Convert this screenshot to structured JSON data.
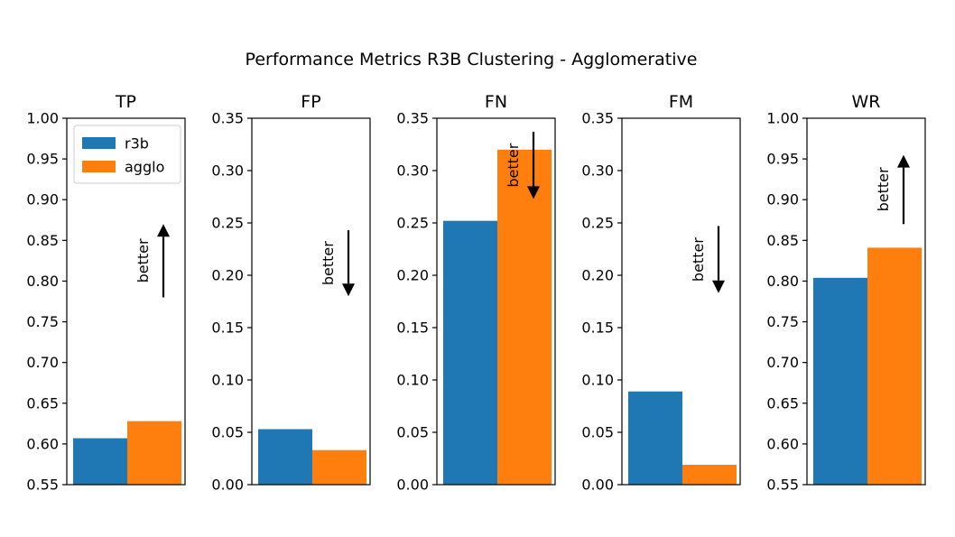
{
  "figure": {
    "title": "Performance Metrics R3B Clustering - Agglomerative"
  },
  "colors": {
    "r3b": "#1f77b4",
    "agglo": "#ff7f0e"
  },
  "legend": {
    "placement": "upper-left of first panel",
    "entries": [
      "r3b",
      "agglo"
    ]
  },
  "chart_data": [
    {
      "type": "bar",
      "title": "TP",
      "categories": [
        "r3b",
        "agglo"
      ],
      "values": [
        0.607,
        0.628
      ],
      "ylim": [
        0.55,
        1.0
      ],
      "yticks": [
        "0.55",
        "0.60",
        "0.65",
        "0.70",
        "0.75",
        "0.80",
        "0.85",
        "0.90",
        "0.95",
        "1.00"
      ],
      "annotation": {
        "text": "better",
        "direction": "up",
        "from": 0.78,
        "to": 0.87
      }
    },
    {
      "type": "bar",
      "title": "FP",
      "categories": [
        "r3b",
        "agglo"
      ],
      "values": [
        0.053,
        0.033
      ],
      "ylim": [
        0.0,
        0.35
      ],
      "yticks": [
        "0.00",
        "0.05",
        "0.10",
        "0.15",
        "0.20",
        "0.25",
        "0.30",
        "0.35"
      ],
      "annotation": {
        "text": "better",
        "direction": "down",
        "from": 0.243,
        "to": 0.18
      }
    },
    {
      "type": "bar",
      "title": "FN",
      "categories": [
        "r3b",
        "agglo"
      ],
      "values": [
        0.252,
        0.32
      ],
      "ylim": [
        0.0,
        0.35
      ],
      "yticks": [
        "0.00",
        "0.05",
        "0.10",
        "0.15",
        "0.20",
        "0.25",
        "0.30",
        "0.35"
      ],
      "annotation": {
        "text": "better",
        "direction": "down",
        "from": 0.337,
        "to": 0.273
      }
    },
    {
      "type": "bar",
      "title": "FM",
      "categories": [
        "r3b",
        "agglo"
      ],
      "values": [
        0.089,
        0.019
      ],
      "ylim": [
        0.0,
        0.35
      ],
      "yticks": [
        "0.00",
        "0.05",
        "0.10",
        "0.15",
        "0.20",
        "0.25",
        "0.30",
        "0.35"
      ],
      "annotation": {
        "text": "better",
        "direction": "down",
        "from": 0.247,
        "to": 0.183
      }
    },
    {
      "type": "bar",
      "title": "WR",
      "categories": [
        "r3b",
        "agglo"
      ],
      "values": [
        0.804,
        0.841
      ],
      "ylim": [
        0.55,
        1.0
      ],
      "yticks": [
        "0.55",
        "0.60",
        "0.65",
        "0.70",
        "0.75",
        "0.80",
        "0.85",
        "0.90",
        "0.95",
        "1.00"
      ],
      "annotation": {
        "text": "better",
        "direction": "up",
        "from": 0.87,
        "to": 0.955
      }
    }
  ]
}
